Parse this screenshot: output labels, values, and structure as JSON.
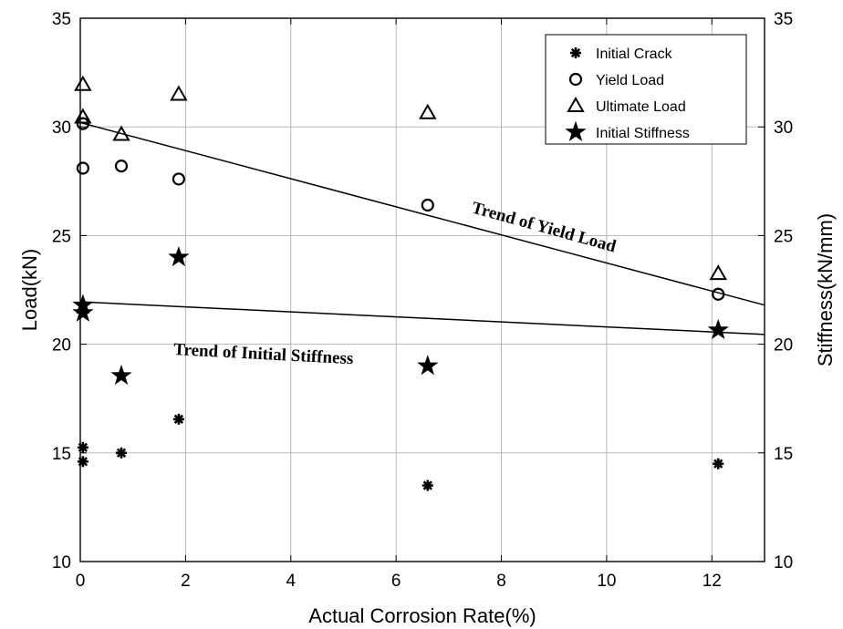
{
  "chart_data": {
    "type": "scatter",
    "xlabel": "Actual Corrosion Rate(%)",
    "ylabel": "Load(kN)",
    "y2label": "Stiffness(kN/mm)",
    "xlim": [
      0,
      13
    ],
    "ylim": [
      10,
      35
    ],
    "y2lim": [
      10,
      35
    ],
    "xticks": [
      "0",
      "2",
      "4",
      "6",
      "8",
      "10",
      "12"
    ],
    "yticks": [
      "10",
      "15",
      "20",
      "25",
      "30",
      "35"
    ],
    "y2ticks": [
      "10",
      "15",
      "20",
      "25",
      "30",
      "35"
    ],
    "grid": true,
    "legend_position": "top-right",
    "series": [
      {
        "name": "Initial Crack",
        "marker": "asterisk",
        "axis": "left",
        "points": [
          [
            0.05,
            14.6
          ],
          [
            0.05,
            15.25
          ],
          [
            0.78,
            15.0
          ],
          [
            1.87,
            16.55
          ],
          [
            6.6,
            13.5
          ],
          [
            12.12,
            14.5
          ]
        ]
      },
      {
        "name": "Yield Load",
        "marker": "circle",
        "axis": "left",
        "points": [
          [
            0.05,
            30.15
          ],
          [
            0.05,
            28.1
          ],
          [
            0.78,
            28.2
          ],
          [
            1.87,
            27.6
          ],
          [
            6.6,
            26.4
          ],
          [
            12.12,
            22.3
          ]
        ]
      },
      {
        "name": "Ultimate Load",
        "marker": "triangle",
        "axis": "left",
        "points": [
          [
            0.05,
            31.95
          ],
          [
            0.05,
            30.45
          ],
          [
            0.78,
            29.65
          ],
          [
            1.87,
            31.5
          ],
          [
            6.6,
            30.65
          ],
          [
            12.12,
            23.25
          ]
        ]
      },
      {
        "name": "Initial Stiffness",
        "marker": "star",
        "axis": "right",
        "points": [
          [
            0.05,
            21.8
          ],
          [
            0.05,
            21.45
          ],
          [
            0.78,
            18.55
          ],
          [
            1.87,
            24.0
          ],
          [
            6.6,
            19.0
          ],
          [
            12.12,
            20.65
          ]
        ]
      }
    ],
    "trend_lines": [
      {
        "label": "Trend of Yield Load",
        "from": [
          0,
          30.2
        ],
        "to": [
          13,
          21.8
        ]
      },
      {
        "label": "Trend of Initial Stiffness",
        "from": [
          0,
          21.95
        ],
        "to": [
          13,
          20.45
        ]
      }
    ]
  }
}
